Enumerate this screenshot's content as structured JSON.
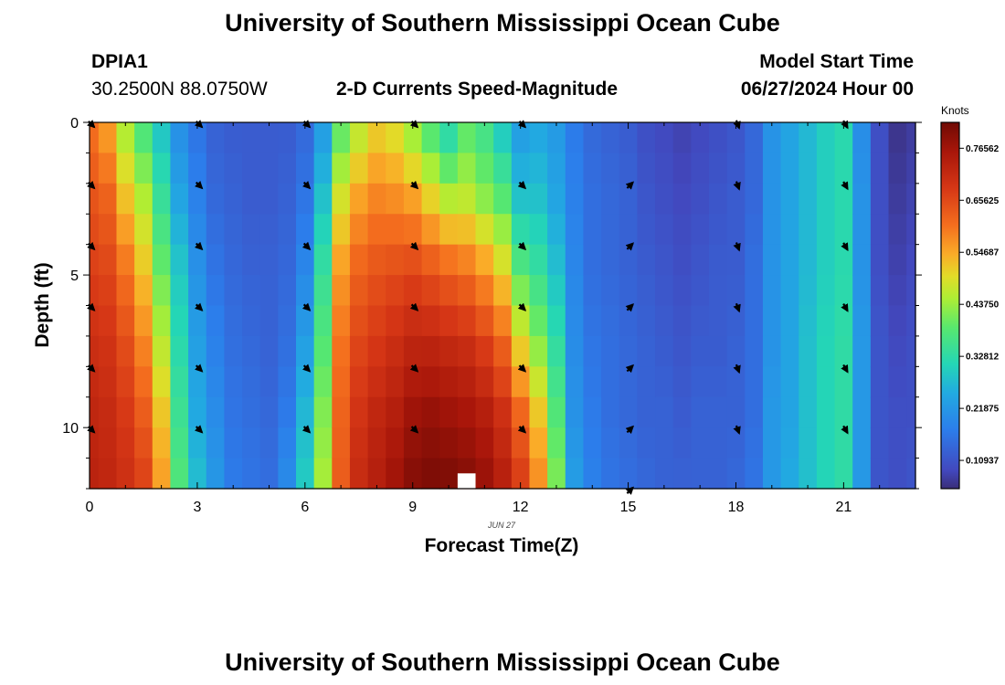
{
  "header": {
    "title": "University of Southern Mississippi Ocean Cube",
    "station_id": "DPIA1",
    "coordinates": "30.2500N  88.0750W",
    "subtitle": "2-D Currents Speed-Magnitude",
    "model_start_label": "Model Start Time",
    "model_start_value": "06/27/2024 Hour 00",
    "footer_title": "University of Southern Mississippi Ocean Cube"
  },
  "chart_data": {
    "type": "heatmap",
    "title": "2-D Currents Speed-Magnitude",
    "xlabel": "Forecast Time(Z)",
    "ylabel": "Depth (ft)",
    "date_label": "JUN 27",
    "xlim": [
      0,
      23
    ],
    "ylim": [
      0,
      12
    ],
    "x_ticks": [
      0,
      3,
      6,
      9,
      12,
      15,
      18,
      21
    ],
    "x_tick_labels": [
      "0",
      "3",
      "6",
      "9",
      "12",
      "15",
      "18",
      "21"
    ],
    "y_ticks": [
      0,
      5,
      10
    ],
    "y_tick_labels": [
      "0",
      "5",
      "10"
    ],
    "colorbar": {
      "label": "Knots",
      "min": 0.05,
      "max": 0.82,
      "ticks": [
        0.109375,
        0.21875,
        0.328125,
        0.4375,
        0.546875,
        0.65625,
        0.765625
      ],
      "tick_labels": [
        "0.10937",
        "0.21875",
        "0.32812",
        "0.43750",
        "0.54687",
        "0.65625",
        "0.76562"
      ]
    },
    "hours": [
      0,
      0.5,
      1,
      1.5,
      2,
      2.5,
      3,
      3.5,
      4,
      4.5,
      5,
      5.5,
      6,
      6.5,
      7,
      7.5,
      8,
      8.5,
      9,
      9.5,
      10,
      10.5,
      11,
      11.5,
      12,
      12.5,
      13,
      13.5,
      14,
      14.5,
      15,
      15.5,
      16,
      16.5,
      17,
      17.5,
      18,
      18.5,
      19,
      19.5,
      20,
      20.5,
      21,
      21.5,
      22,
      22.5,
      23
    ],
    "depth_row_edges_ft": [
      0,
      1,
      2,
      3,
      4,
      5,
      6,
      7,
      8,
      9,
      10,
      11,
      12
    ],
    "hour_profiles": [
      [
        0.6,
        0.64,
        0.67,
        0.7,
        0.72,
        0.73
      ],
      [
        0.55,
        0.62,
        0.66,
        0.69,
        0.71,
        0.72
      ],
      [
        0.44,
        0.52,
        0.6,
        0.65,
        0.68,
        0.7
      ],
      [
        0.36,
        0.45,
        0.52,
        0.58,
        0.63,
        0.67
      ],
      [
        0.28,
        0.34,
        0.4,
        0.46,
        0.52,
        0.56
      ],
      [
        0.2,
        0.24,
        0.29,
        0.32,
        0.35,
        0.38
      ],
      [
        0.16,
        0.18,
        0.21,
        0.23,
        0.25,
        0.28
      ],
      [
        0.13,
        0.14,
        0.16,
        0.18,
        0.2,
        0.22
      ],
      [
        0.12,
        0.13,
        0.14,
        0.15,
        0.16,
        0.17
      ],
      [
        0.12,
        0.12,
        0.13,
        0.14,
        0.15,
        0.16
      ],
      [
        0.12,
        0.12,
        0.13,
        0.13,
        0.14,
        0.15
      ],
      [
        0.12,
        0.13,
        0.14,
        0.15,
        0.17,
        0.2
      ],
      [
        0.14,
        0.16,
        0.19,
        0.23,
        0.27,
        0.3
      ],
      [
        0.22,
        0.28,
        0.34,
        0.38,
        0.42,
        0.45
      ],
      [
        0.38,
        0.48,
        0.56,
        0.6,
        0.62,
        0.63
      ],
      [
        0.45,
        0.55,
        0.62,
        0.66,
        0.69,
        0.71
      ],
      [
        0.5,
        0.58,
        0.64,
        0.68,
        0.72,
        0.74
      ],
      [
        0.48,
        0.57,
        0.65,
        0.7,
        0.74,
        0.77
      ],
      [
        0.42,
        0.55,
        0.66,
        0.72,
        0.77,
        0.8
      ],
      [
        0.36,
        0.5,
        0.64,
        0.72,
        0.78,
        0.81
      ],
      [
        0.3,
        0.45,
        0.62,
        0.71,
        0.77,
        0.81
      ],
      [
        0.38,
        0.46,
        0.6,
        0.7,
        0.76,
        0.8
      ],
      [
        0.35,
        0.42,
        0.56,
        0.67,
        0.74,
        0.78
      ],
      [
        0.28,
        0.38,
        0.5,
        0.62,
        0.7,
        0.74
      ],
      [
        0.22,
        0.28,
        0.38,
        0.5,
        0.62,
        0.68
      ],
      [
        0.24,
        0.28,
        0.34,
        0.42,
        0.52,
        0.58
      ],
      [
        0.22,
        0.24,
        0.28,
        0.33,
        0.38,
        0.42
      ],
      [
        0.17,
        0.18,
        0.19,
        0.2,
        0.21,
        0.23
      ],
      [
        0.14,
        0.15,
        0.15,
        0.16,
        0.17,
        0.18
      ],
      [
        0.13,
        0.14,
        0.14,
        0.15,
        0.15,
        0.16
      ],
      [
        0.12,
        0.13,
        0.13,
        0.14,
        0.14,
        0.15
      ],
      [
        0.1,
        0.11,
        0.12,
        0.13,
        0.13,
        0.14
      ],
      [
        0.09,
        0.1,
        0.11,
        0.12,
        0.13,
        0.13
      ],
      [
        0.08,
        0.09,
        0.1,
        0.11,
        0.12,
        0.13
      ],
      [
        0.09,
        0.1,
        0.11,
        0.12,
        0.13,
        0.13
      ],
      [
        0.1,
        0.11,
        0.12,
        0.12,
        0.13,
        0.13
      ],
      [
        0.11,
        0.12,
        0.12,
        0.13,
        0.13,
        0.14
      ],
      [
        0.14,
        0.14,
        0.15,
        0.15,
        0.15,
        0.16
      ],
      [
        0.21,
        0.21,
        0.21,
        0.21,
        0.22,
        0.22
      ],
      [
        0.24,
        0.24,
        0.24,
        0.24,
        0.24,
        0.25
      ],
      [
        0.27,
        0.27,
        0.27,
        0.28,
        0.28,
        0.28
      ],
      [
        0.3,
        0.3,
        0.3,
        0.31,
        0.31,
        0.31
      ],
      [
        0.32,
        0.32,
        0.32,
        0.33,
        0.33,
        0.33
      ],
      [
        0.2,
        0.21,
        0.21,
        0.22,
        0.22,
        0.22
      ],
      [
        0.1,
        0.1,
        0.1,
        0.11,
        0.11,
        0.11
      ],
      [
        0.06,
        0.07,
        0.08,
        0.09,
        0.1,
        0.1
      ],
      [
        0.07,
        0.08,
        0.09,
        0.1,
        0.1,
        0.11
      ]
    ],
    "missing_cells": [
      {
        "hour_start": 10.25,
        "hour_end": 10.75,
        "depth_start": 11.5,
        "depth_end": 12
      }
    ],
    "arrow_hours": [
      0,
      3,
      6,
      9,
      12,
      15,
      18,
      21
    ],
    "arrow_depths_ft": [
      0,
      2,
      4,
      6,
      8,
      10
    ],
    "arrow_depths_hour15_ft": [
      2,
      4,
      6,
      8,
      10,
      12
    ],
    "arrow_direction_deg_by_hour": [
      135,
      135,
      135,
      135,
      135,
      45,
      160,
      150
    ]
  }
}
